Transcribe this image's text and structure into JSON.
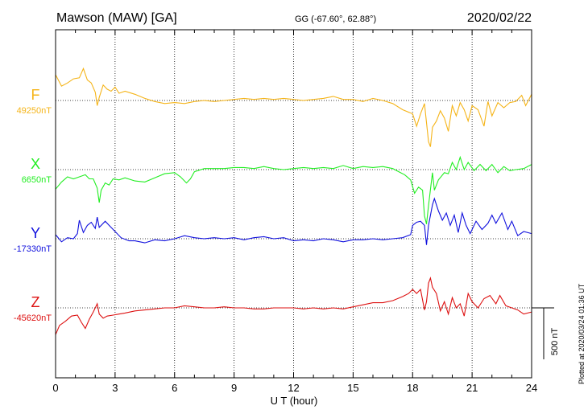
{
  "header": {
    "station": "Mawson (MAW)  [GA]",
    "coords": "GG (-67.60°,  62.88°)",
    "date": "2020/02/22"
  },
  "footer": {
    "plotted": "Plotted at 2020/03/24 01:36 UT"
  },
  "chart_data": {
    "type": "line",
    "xlabel": "U T (hour)",
    "xlim": [
      0,
      24
    ],
    "xticks": [
      "0",
      "3",
      "6",
      "9",
      "12",
      "15",
      "18",
      "21",
      "24"
    ],
    "scale_bar": {
      "label": "500 nT",
      "nT": 500
    },
    "series": [
      {
        "name": "F",
        "baseline_label": "49250nT",
        "baseline_nT": 49250,
        "color": "#f5b418",
        "points": [
          [
            0,
            49500
          ],
          [
            0.3,
            49390
          ],
          [
            0.6,
            49420
          ],
          [
            0.9,
            49460
          ],
          [
            1.2,
            49470
          ],
          [
            1.4,
            49560
          ],
          [
            1.6,
            49450
          ],
          [
            1.8,
            49420
          ],
          [
            2.0,
            49330
          ],
          [
            2.1,
            49200
          ],
          [
            2.2,
            49280
          ],
          [
            2.4,
            49400
          ],
          [
            2.6,
            49360
          ],
          [
            2.8,
            49340
          ],
          [
            3.0,
            49380
          ],
          [
            3.2,
            49320
          ],
          [
            3.5,
            49340
          ],
          [
            4.0,
            49310
          ],
          [
            4.5,
            49270
          ],
          [
            5.0,
            49240
          ],
          [
            5.5,
            49220
          ],
          [
            6.0,
            49230
          ],
          [
            6.5,
            49220
          ],
          [
            7.0,
            49240
          ],
          [
            7.5,
            49250
          ],
          [
            8.0,
            49240
          ],
          [
            8.5,
            49250
          ],
          [
            9.0,
            49260
          ],
          [
            9.5,
            49270
          ],
          [
            10.0,
            49260
          ],
          [
            10.5,
            49270
          ],
          [
            11.0,
            49260
          ],
          [
            11.5,
            49270
          ],
          [
            12.0,
            49260
          ],
          [
            12.5,
            49250
          ],
          [
            13.0,
            49260
          ],
          [
            13.5,
            49270
          ],
          [
            14.0,
            49290
          ],
          [
            14.5,
            49260
          ],
          [
            15.0,
            49260
          ],
          [
            15.5,
            49240
          ],
          [
            16.0,
            49270
          ],
          [
            16.5,
            49250
          ],
          [
            17.0,
            49220
          ],
          [
            17.5,
            49160
          ],
          [
            18.0,
            49120
          ],
          [
            18.2,
            49000
          ],
          [
            18.4,
            49120
          ],
          [
            18.6,
            49220
          ],
          [
            18.8,
            48850
          ],
          [
            18.9,
            48800
          ],
          [
            19.0,
            48990
          ],
          [
            19.2,
            49050
          ],
          [
            19.4,
            49150
          ],
          [
            19.6,
            49080
          ],
          [
            19.8,
            48950
          ],
          [
            20.0,
            49200
          ],
          [
            20.2,
            49100
          ],
          [
            20.4,
            49230
          ],
          [
            20.6,
            49160
          ],
          [
            20.8,
            49050
          ],
          [
            21.0,
            49200
          ],
          [
            21.3,
            49160
          ],
          [
            21.6,
            49000
          ],
          [
            21.8,
            49240
          ],
          [
            22.0,
            49100
          ],
          [
            22.3,
            49230
          ],
          [
            22.6,
            49180
          ],
          [
            22.9,
            49230
          ],
          [
            23.2,
            49240
          ],
          [
            23.5,
            49300
          ],
          [
            23.7,
            49200
          ],
          [
            24,
            49310
          ]
        ]
      },
      {
        "name": "X",
        "baseline_label": "6650nT",
        "baseline_nT": 6650,
        "color": "#22ee22",
        "points": [
          [
            0,
            6460
          ],
          [
            0.3,
            6530
          ],
          [
            0.6,
            6580
          ],
          [
            0.9,
            6560
          ],
          [
            1.2,
            6580
          ],
          [
            1.5,
            6600
          ],
          [
            1.7,
            6560
          ],
          [
            1.9,
            6560
          ],
          [
            2.1,
            6470
          ],
          [
            2.2,
            6330
          ],
          [
            2.3,
            6450
          ],
          [
            2.5,
            6520
          ],
          [
            2.7,
            6500
          ],
          [
            2.9,
            6560
          ],
          [
            3.2,
            6550
          ],
          [
            3.5,
            6570
          ],
          [
            4.0,
            6540
          ],
          [
            4.5,
            6530
          ],
          [
            5.0,
            6570
          ],
          [
            5.5,
            6610
          ],
          [
            6.0,
            6620
          ],
          [
            6.3,
            6580
          ],
          [
            6.6,
            6520
          ],
          [
            6.8,
            6560
          ],
          [
            7.0,
            6630
          ],
          [
            7.5,
            6660
          ],
          [
            8.0,
            6660
          ],
          [
            8.5,
            6660
          ],
          [
            9.0,
            6670
          ],
          [
            9.5,
            6670
          ],
          [
            10.0,
            6660
          ],
          [
            10.5,
            6680
          ],
          [
            11.0,
            6660
          ],
          [
            11.5,
            6650
          ],
          [
            12.0,
            6660
          ],
          [
            12.5,
            6670
          ],
          [
            13.0,
            6660
          ],
          [
            13.5,
            6670
          ],
          [
            14.0,
            6660
          ],
          [
            14.5,
            6690
          ],
          [
            15.0,
            6660
          ],
          [
            15.5,
            6680
          ],
          [
            16.0,
            6670
          ],
          [
            16.5,
            6680
          ],
          [
            17.0,
            6660
          ],
          [
            17.3,
            6630
          ],
          [
            17.6,
            6600
          ],
          [
            17.9,
            6550
          ],
          [
            18.1,
            6420
          ],
          [
            18.3,
            6480
          ],
          [
            18.5,
            6450
          ],
          [
            18.6,
            6200
          ],
          [
            18.7,
            6120
          ],
          [
            18.8,
            6300
          ],
          [
            19.0,
            6620
          ],
          [
            19.1,
            6450
          ],
          [
            19.3,
            6550
          ],
          [
            19.6,
            6620
          ],
          [
            19.8,
            6610
          ],
          [
            20.0,
            6720
          ],
          [
            20.2,
            6650
          ],
          [
            20.4,
            6770
          ],
          [
            20.6,
            6650
          ],
          [
            20.8,
            6720
          ],
          [
            21.1,
            6640
          ],
          [
            21.4,
            6700
          ],
          [
            21.7,
            6640
          ],
          [
            22.0,
            6700
          ],
          [
            22.3,
            6620
          ],
          [
            22.6,
            6680
          ],
          [
            22.9,
            6640
          ],
          [
            23.2,
            6650
          ],
          [
            23.6,
            6660
          ],
          [
            24,
            6700
          ]
        ]
      },
      {
        "name": "Y",
        "baseline_label": "-17330nT",
        "baseline_nT": -17330,
        "color": "#1010dd",
        "points": [
          [
            0,
            -17290
          ],
          [
            0.3,
            -17360
          ],
          [
            0.6,
            -17320
          ],
          [
            0.9,
            -17330
          ],
          [
            1.1,
            -17280
          ],
          [
            1.2,
            -17150
          ],
          [
            1.4,
            -17270
          ],
          [
            1.6,
            -17200
          ],
          [
            1.8,
            -17170
          ],
          [
            2.0,
            -17230
          ],
          [
            2.1,
            -17120
          ],
          [
            2.2,
            -17220
          ],
          [
            2.5,
            -17160
          ],
          [
            2.7,
            -17200
          ],
          [
            3.0,
            -17260
          ],
          [
            3.3,
            -17320
          ],
          [
            3.7,
            -17350
          ],
          [
            4.0,
            -17350
          ],
          [
            4.5,
            -17370
          ],
          [
            5.0,
            -17340
          ],
          [
            5.5,
            -17350
          ],
          [
            6.0,
            -17330
          ],
          [
            6.5,
            -17300
          ],
          [
            7.0,
            -17320
          ],
          [
            7.5,
            -17330
          ],
          [
            8.0,
            -17320
          ],
          [
            8.5,
            -17330
          ],
          [
            9.0,
            -17320
          ],
          [
            9.5,
            -17340
          ],
          [
            10.0,
            -17320
          ],
          [
            10.5,
            -17310
          ],
          [
            11.0,
            -17330
          ],
          [
            11.5,
            -17320
          ],
          [
            12.0,
            -17350
          ],
          [
            12.5,
            -17340
          ],
          [
            13.0,
            -17350
          ],
          [
            13.5,
            -17330
          ],
          [
            14.0,
            -17340
          ],
          [
            14.5,
            -17360
          ],
          [
            15.0,
            -17340
          ],
          [
            15.5,
            -17340
          ],
          [
            16.0,
            -17330
          ],
          [
            16.5,
            -17340
          ],
          [
            17.0,
            -17330
          ],
          [
            17.5,
            -17320
          ],
          [
            17.9,
            -17290
          ],
          [
            18.0,
            -17200
          ],
          [
            18.2,
            -17170
          ],
          [
            18.4,
            -17160
          ],
          [
            18.6,
            -17200
          ],
          [
            18.7,
            -17390
          ],
          [
            18.8,
            -17200
          ],
          [
            19.0,
            -17000
          ],
          [
            19.1,
            -16940
          ],
          [
            19.3,
            -17060
          ],
          [
            19.5,
            -17150
          ],
          [
            19.7,
            -17080
          ],
          [
            19.9,
            -17200
          ],
          [
            20.1,
            -17100
          ],
          [
            20.3,
            -17270
          ],
          [
            20.5,
            -17080
          ],
          [
            20.7,
            -17200
          ],
          [
            20.9,
            -17280
          ],
          [
            21.2,
            -17160
          ],
          [
            21.5,
            -17240
          ],
          [
            21.8,
            -17180
          ],
          [
            22.0,
            -17100
          ],
          [
            22.2,
            -17180
          ],
          [
            22.5,
            -17080
          ],
          [
            22.8,
            -17240
          ],
          [
            23.0,
            -17160
          ],
          [
            23.3,
            -17300
          ],
          [
            23.6,
            -17260
          ],
          [
            24,
            -17280
          ]
        ]
      },
      {
        "name": "Z",
        "baseline_label": "-45620nT",
        "baseline_nT": -45620,
        "color": "#dd1111",
        "points": [
          [
            0,
            -45880
          ],
          [
            0.2,
            -45790
          ],
          [
            0.5,
            -45750
          ],
          [
            0.8,
            -45700
          ],
          [
            1.1,
            -45690
          ],
          [
            1.3,
            -45760
          ],
          [
            1.5,
            -45820
          ],
          [
            1.7,
            -45730
          ],
          [
            1.9,
            -45660
          ],
          [
            2.1,
            -45580
          ],
          [
            2.2,
            -45680
          ],
          [
            2.4,
            -45720
          ],
          [
            2.6,
            -45700
          ],
          [
            2.9,
            -45690
          ],
          [
            3.2,
            -45680
          ],
          [
            3.5,
            -45670
          ],
          [
            4.0,
            -45650
          ],
          [
            4.5,
            -45640
          ],
          [
            5.0,
            -45630
          ],
          [
            5.5,
            -45620
          ],
          [
            6.0,
            -45620
          ],
          [
            6.5,
            -45600
          ],
          [
            7.0,
            -45610
          ],
          [
            7.5,
            -45620
          ],
          [
            8.0,
            -45620
          ],
          [
            8.5,
            -45610
          ],
          [
            9.0,
            -45620
          ],
          [
            9.5,
            -45620
          ],
          [
            10.0,
            -45630
          ],
          [
            10.5,
            -45630
          ],
          [
            11.0,
            -45620
          ],
          [
            11.5,
            -45620
          ],
          [
            12.0,
            -45620
          ],
          [
            12.5,
            -45630
          ],
          [
            13.0,
            -45620
          ],
          [
            13.5,
            -45630
          ],
          [
            14.0,
            -45620
          ],
          [
            14.5,
            -45630
          ],
          [
            15.0,
            -45610
          ],
          [
            15.5,
            -45590
          ],
          [
            16.0,
            -45570
          ],
          [
            16.5,
            -45570
          ],
          [
            17.0,
            -45550
          ],
          [
            17.5,
            -45510
          ],
          [
            17.8,
            -45480
          ],
          [
            18.0,
            -45440
          ],
          [
            18.2,
            -45480
          ],
          [
            18.4,
            -45440
          ],
          [
            18.6,
            -45640
          ],
          [
            18.7,
            -45560
          ],
          [
            18.8,
            -45380
          ],
          [
            18.9,
            -45330
          ],
          [
            19.0,
            -45420
          ],
          [
            19.2,
            -45480
          ],
          [
            19.4,
            -45650
          ],
          [
            19.6,
            -45560
          ],
          [
            19.8,
            -45680
          ],
          [
            20.0,
            -45520
          ],
          [
            20.2,
            -45620
          ],
          [
            20.4,
            -45580
          ],
          [
            20.6,
            -45700
          ],
          [
            20.8,
            -45480
          ],
          [
            21.0,
            -45560
          ],
          [
            21.3,
            -45620
          ],
          [
            21.6,
            -45530
          ],
          [
            21.9,
            -45500
          ],
          [
            22.2,
            -45580
          ],
          [
            22.4,
            -45500
          ],
          [
            22.7,
            -45600
          ],
          [
            23.0,
            -45620
          ],
          [
            23.3,
            -45640
          ],
          [
            23.6,
            -45680
          ],
          [
            24,
            -45660
          ]
        ]
      }
    ]
  }
}
